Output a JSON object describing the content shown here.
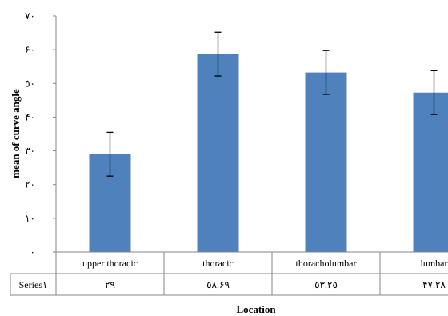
{
  "chart_data": {
    "type": "bar",
    "categories": [
      "upper thoracic",
      "thoracic",
      "thoracholumbar",
      "lumbar"
    ],
    "series": [
      {
        "name": "Series١",
        "values": [
          29,
          58.69,
          53.25,
          47.28
        ],
        "error": [
          6.5,
          6.5,
          6.5,
          6.5
        ],
        "color": "#4f81bd",
        "table_values": [
          "٢٩",
          "٥٨.۶٩",
          "٥٣.٢٥",
          "۴٧.٢٨"
        ]
      }
    ],
    "ylim": [
      0,
      70
    ],
    "yticks": [
      0,
      10,
      20,
      30,
      40,
      50,
      60,
      70
    ],
    "ytick_labels": [
      "٠",
      "١٠",
      "٢٠",
      "٣٠",
      "۴٠",
      "٥٠",
      "۶٠",
      "٧٠"
    ],
    "ylabel": "mean of curve angle",
    "xlabel": "Location",
    "grid": false,
    "data_table": true
  }
}
